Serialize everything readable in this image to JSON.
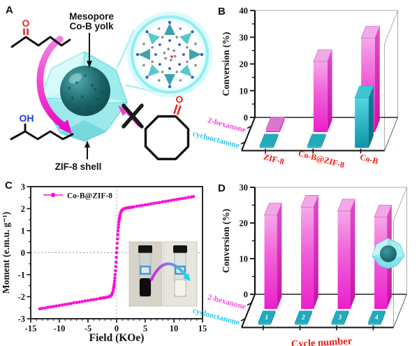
{
  "panels": {
    "a": "A",
    "b": "B",
    "c": "C",
    "d": "D"
  },
  "panel_a": {
    "yolk_label_line1": "Mesopore",
    "yolk_label_line2": "Co-B yolk",
    "shell_label": "ZIF-8 shell",
    "ketone_oxygen": "O",
    "alcohol_group": "OH",
    "cyclooctanone_oxygen": "O",
    "colors": {
      "oxygen_red": "#e8231a",
      "hydroxyl_blue": "#1a35e0",
      "shell_cyan": "#9deef0",
      "core_teal": "#1c676c",
      "arrow_magenta": "#ef12c9"
    }
  },
  "chart_data": [
    {
      "id": "B",
      "type": "bar",
      "projection": "3d",
      "ylabel": "Conversion (%)",
      "ylim": [
        0,
        40
      ],
      "yticks": [
        0,
        10,
        20,
        30,
        40
      ],
      "categories": [
        "ZIF-8",
        "Co-B@ZIF-8",
        "Co-B"
      ],
      "category_color": "#ee1a11",
      "series": [
        {
          "name": "2-hexanone",
          "color": "#ee22cc",
          "label_color": "#ec52d8",
          "values": [
            1,
            24,
            32
          ]
        },
        {
          "name": "cyclooctanone",
          "color": "#10a8c0",
          "label_color": "#28c8e8",
          "values": [
            0.5,
            0.5,
            14
          ]
        }
      ]
    },
    {
      "id": "C",
      "type": "scatter",
      "legend": "Co-B@ZIF-8",
      "marker_color": "#fa10d6",
      "xlabel": "Field (KOe)",
      "ylabel": "Moment (e.m.u. g⁻¹)",
      "xlim": [
        -15,
        15
      ],
      "ylim": [
        -3,
        3
      ],
      "xticks": [
        -15,
        -10,
        -5,
        0,
        5,
        10,
        15
      ],
      "yticks": [
        -3,
        -2,
        -1,
        0,
        1,
        2,
        3
      ],
      "points": [
        [
          -13.4,
          -2.55
        ],
        [
          -13,
          -2.53
        ],
        [
          -12.5,
          -2.51
        ],
        [
          -12,
          -2.48
        ],
        [
          -11.5,
          -2.46
        ],
        [
          -11,
          -2.44
        ],
        [
          -10.5,
          -2.42
        ],
        [
          -10,
          -2.4
        ],
        [
          -9.5,
          -2.37
        ],
        [
          -9,
          -2.35
        ],
        [
          -8.5,
          -2.33
        ],
        [
          -8,
          -2.31
        ],
        [
          -7.5,
          -2.28
        ],
        [
          -7,
          -2.26
        ],
        [
          -6.5,
          -2.24
        ],
        [
          -6,
          -2.22
        ],
        [
          -5.5,
          -2.19
        ],
        [
          -5,
          -2.17
        ],
        [
          -4.5,
          -2.15
        ],
        [
          -4,
          -2.13
        ],
        [
          -3.5,
          -2.11
        ],
        [
          -3,
          -2.08
        ],
        [
          -2.75,
          -2.07
        ],
        [
          -2.5,
          -2.06
        ],
        [
          -2.25,
          -2.05
        ],
        [
          -2,
          -2.04
        ],
        [
          -1.75,
          -2.03
        ],
        [
          -1.5,
          -2.01
        ],
        [
          -1.25,
          -1.99
        ],
        [
          -1.1,
          -1.97
        ],
        [
          -1,
          -1.95
        ],
        [
          -0.9,
          -1.92
        ],
        [
          -0.8,
          -1.87
        ],
        [
          -0.7,
          -1.81
        ],
        [
          -0.6,
          -1.72
        ],
        [
          -0.55,
          -1.66
        ],
        [
          -0.5,
          -1.58
        ],
        [
          -0.45,
          -1.5
        ],
        [
          -0.4,
          -1.4
        ],
        [
          -0.35,
          -1.28
        ],
        [
          -0.3,
          -1.14
        ],
        [
          -0.25,
          -0.99
        ],
        [
          -0.2,
          -0.82
        ],
        [
          -0.15,
          -0.63
        ],
        [
          -0.1,
          -0.43
        ],
        [
          -0.05,
          -0.21
        ],
        [
          0,
          0
        ],
        [
          0.05,
          0.21
        ],
        [
          0.1,
          0.43
        ],
        [
          0.15,
          0.63
        ],
        [
          0.2,
          0.82
        ],
        [
          0.25,
          0.99
        ],
        [
          0.3,
          1.14
        ],
        [
          0.35,
          1.28
        ],
        [
          0.4,
          1.4
        ],
        [
          0.45,
          1.5
        ],
        [
          0.5,
          1.58
        ],
        [
          0.55,
          1.66
        ],
        [
          0.6,
          1.72
        ],
        [
          0.7,
          1.81
        ],
        [
          0.8,
          1.87
        ],
        [
          0.9,
          1.92
        ],
        [
          1,
          1.95
        ],
        [
          1.1,
          1.97
        ],
        [
          1.25,
          1.99
        ],
        [
          1.5,
          2.01
        ],
        [
          1.75,
          2.03
        ],
        [
          2,
          2.04
        ],
        [
          2.25,
          2.05
        ],
        [
          2.5,
          2.06
        ],
        [
          2.75,
          2.07
        ],
        [
          3,
          2.08
        ],
        [
          3.5,
          2.11
        ],
        [
          4,
          2.13
        ],
        [
          4.5,
          2.15
        ],
        [
          5,
          2.17
        ],
        [
          5.5,
          2.19
        ],
        [
          6,
          2.22
        ],
        [
          6.5,
          2.24
        ],
        [
          7,
          2.26
        ],
        [
          7.5,
          2.28
        ],
        [
          8,
          2.31
        ],
        [
          8.5,
          2.33
        ],
        [
          9,
          2.35
        ],
        [
          9.5,
          2.37
        ],
        [
          10,
          2.4
        ],
        [
          10.5,
          2.42
        ],
        [
          11,
          2.44
        ],
        [
          11.5,
          2.46
        ],
        [
          12,
          2.48
        ],
        [
          12.5,
          2.51
        ],
        [
          13,
          2.53
        ],
        [
          13.4,
          2.55
        ]
      ]
    },
    {
      "id": "D",
      "type": "bar",
      "projection": "3d",
      "ylabel": "Conversion (%)",
      "ylim": [
        0,
        30
      ],
      "yticks": [
        0,
        10,
        20,
        30
      ],
      "xlabel": "Cycle number",
      "xlabel_color": "#ee1a11",
      "categories": [
        "1",
        "2",
        "3",
        "4"
      ],
      "series": [
        {
          "name": "2-hexanone",
          "color": "#ee22cc",
          "label_color": "#ec52d8",
          "values": [
            24,
            26,
            25,
            23.5
          ]
        },
        {
          "name": "cyclooctanone",
          "color": "#10a8c0",
          "label_color": "#28c8e8",
          "values": [
            0.4,
            0.4,
            0.4,
            0.4
          ],
          "value_labels": [
            "1",
            "2",
            "3",
            "4"
          ],
          "value_label_color": "#ffffff"
        }
      ]
    }
  ]
}
